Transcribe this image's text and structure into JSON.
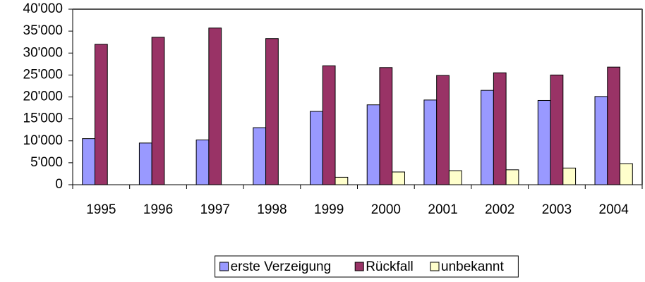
{
  "chart_data": {
    "type": "bar",
    "categories": [
      "1995",
      "1996",
      "1997",
      "1998",
      "1999",
      "2000",
      "2001",
      "2002",
      "2003",
      "2004"
    ],
    "series": [
      {
        "name": "erste Verzeigung",
        "color": "#9999ff",
        "values": [
          10500,
          9500,
          10200,
          13000,
          16700,
          18200,
          19300,
          21500,
          19200,
          20100
        ]
      },
      {
        "name": "Rückfall",
        "color": "#993366",
        "values": [
          32000,
          33600,
          35700,
          33300,
          27100,
          26700,
          24900,
          25500,
          25000,
          26800
        ]
      },
      {
        "name": "unbekannt",
        "color": "#ffffcc",
        "values": [
          null,
          null,
          null,
          null,
          1700,
          2900,
          3200,
          3400,
          3800,
          4800
        ]
      }
    ],
    "ylim": [
      0,
      40000
    ],
    "yticks": [
      0,
      {
        "value": 5000,
        "label": "5'000"
      },
      {
        "value": 10000,
        "label": "10'000"
      },
      {
        "value": 15000,
        "label": "15'000"
      },
      {
        "value": 20000,
        "label": "20'000"
      },
      {
        "value": 25000,
        "label": "25'000"
      },
      {
        "value": 30000,
        "label": "30'000"
      },
      {
        "value": 35000,
        "label": "35'000"
      },
      {
        "value": 40000,
        "label": "40'000"
      }
    ],
    "legend": "bottom"
  }
}
